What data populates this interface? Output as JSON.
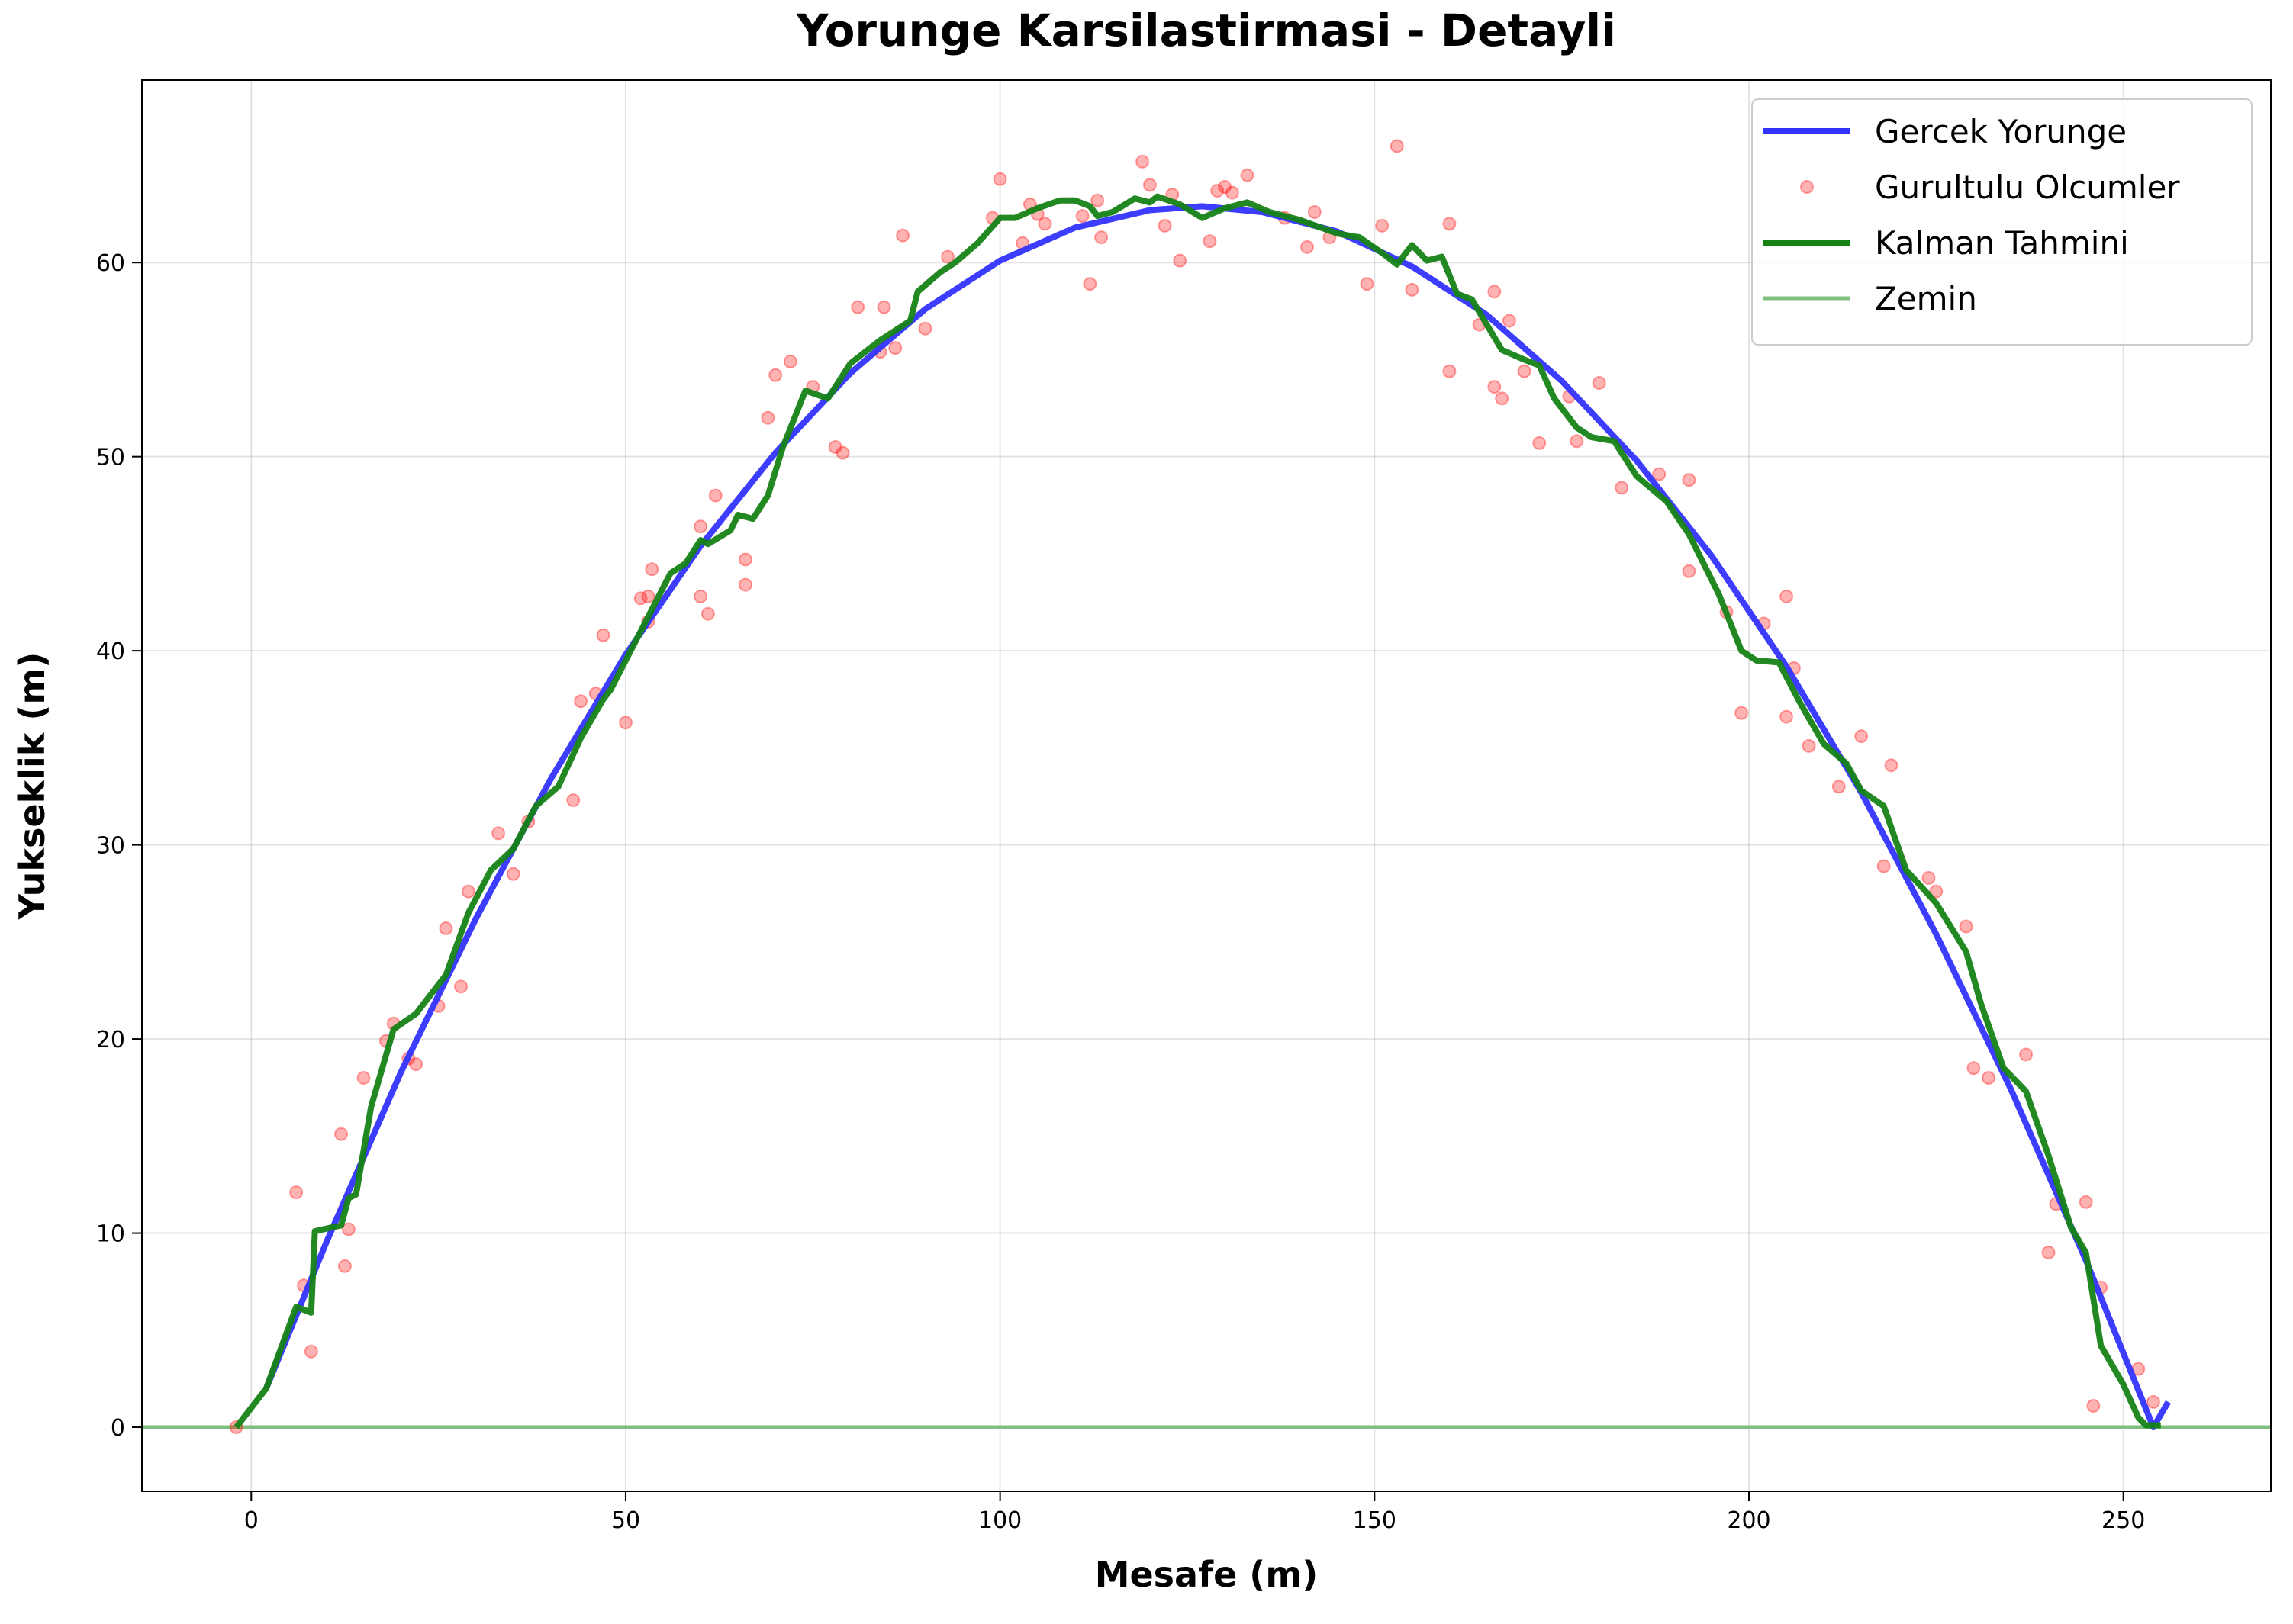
{
  "chart_data": {
    "type": "line",
    "title": "Yorunge Karsilastirmasi - Detayli",
    "x_label": "Mesafe (m)",
    "y_label": "Yukseklik (m)",
    "xlim": [
      -14.6,
      269.7
    ],
    "ylim": [
      -3.3,
      69.4
    ],
    "xticks": [
      0,
      50,
      100,
      150,
      200,
      250
    ],
    "yticks": [
      0,
      10,
      20,
      30,
      40,
      50,
      60
    ],
    "grid": true,
    "legend": "upper right",
    "series": [
      {
        "name": "Gercek Yorunge",
        "kind": "line",
        "color": "#3333ff",
        "x": [
          2,
          10,
          20,
          30,
          40,
          50,
          60,
          70,
          80,
          90,
          100,
          110,
          120,
          127,
          135,
          145,
          155,
          165,
          175,
          185,
          195,
          205,
          215,
          225,
          235,
          245,
          254,
          256
        ],
        "values": [
          2.0,
          9.5,
          18.3,
          26.2,
          33.4,
          39.8,
          45.4,
          50.2,
          54.3,
          57.6,
          60.1,
          61.8,
          62.7,
          62.9,
          62.6,
          61.6,
          59.8,
          57.3,
          53.9,
          49.8,
          44.9,
          39.2,
          32.7,
          25.4,
          17.4,
          8.6,
          0,
          1.3
        ]
      },
      {
        "name": "Gurultulu Olcumler",
        "kind": "scatter",
        "color": "#ff0000",
        "x": [
          -2,
          6,
          7,
          8,
          12,
          12.5,
          13,
          15,
          18,
          19,
          21,
          22,
          25,
          26,
          28,
          29,
          33,
          35,
          37,
          43,
          44,
          46,
          47,
          50,
          52,
          53,
          53.5,
          53,
          60,
          60,
          61,
          62,
          66,
          66,
          69,
          70,
          72,
          75,
          78,
          79,
          81,
          84,
          84.5,
          86,
          87,
          90,
          93,
          99,
          100,
          103,
          104,
          105,
          106,
          111,
          112,
          113,
          113.5,
          119,
          120,
          122,
          123,
          124,
          128,
          129,
          130,
          131,
          133,
          138,
          141,
          142,
          144,
          149,
          151,
          153,
          155,
          160,
          160,
          164,
          166,
          166,
          167,
          168,
          170,
          172,
          176,
          177,
          180,
          183,
          188,
          192,
          192,
          197,
          199,
          202,
          205,
          205,
          206,
          208,
          212,
          215,
          218,
          219,
          224,
          225,
          229,
          230,
          232,
          237,
          240,
          241,
          245,
          246,
          247,
          252,
          254
        ],
        "values": [
          0,
          12.1,
          7.3,
          3.9,
          15.1,
          8.3,
          10.2,
          18,
          19.9,
          20.8,
          19,
          18.7,
          21.7,
          25.7,
          22.7,
          27.6,
          30.6,
          28.5,
          31.2,
          32.3,
          37.4,
          37.8,
          40.8,
          36.3,
          42.7,
          42.8,
          44.2,
          41.5,
          42.8,
          46.4,
          41.9,
          48,
          44.7,
          43.4,
          52,
          54.2,
          54.9,
          53.6,
          50.5,
          50.2,
          57.7,
          55.4,
          57.7,
          55.6,
          61.4,
          56.6,
          60.3,
          62.3,
          64.3,
          61,
          63,
          62.5,
          62,
          62.4,
          58.9,
          63.2,
          61.3,
          65.2,
          64,
          61.9,
          63.5,
          60.1,
          61.1,
          63.7,
          63.9,
          63.6,
          64.5,
          62.3,
          60.8,
          62.6,
          61.3,
          58.9,
          61.9,
          66,
          58.6,
          54.4,
          62,
          56.8,
          53.6,
          58.5,
          53,
          57,
          54.4,
          50.7,
          53.1,
          50.8,
          53.8,
          48.4,
          49.1,
          48.8,
          44.1,
          42,
          36.8,
          41.4,
          42.8,
          36.6,
          39.1,
          35.1,
          33,
          35.6,
          28.9,
          34.1,
          28.3,
          27.6,
          25.8,
          18.5,
          18,
          19.2,
          9,
          11.5,
          11.6,
          1.1,
          7.2,
          3,
          1.3
        ]
      },
      {
        "name": "Kalman Tahmini",
        "kind": "line",
        "color": "#168216",
        "x": [
          -2,
          2,
          6,
          8,
          8.5,
          12,
          13,
          14,
          16,
          19,
          22,
          26,
          29,
          32,
          35,
          38,
          41,
          44,
          47,
          48,
          52,
          56,
          58,
          60,
          61,
          64,
          65,
          67,
          69,
          71,
          74,
          77,
          80,
          84,
          88,
          89,
          92,
          94,
          97,
          100,
          102,
          105,
          108,
          110,
          112,
          113,
          115,
          118,
          120,
          121,
          124,
          127,
          130,
          133,
          136,
          140,
          145,
          148,
          151,
          153,
          155,
          157,
          159,
          161,
          163,
          167,
          170,
          172,
          174,
          177,
          179,
          182,
          185,
          189,
          192,
          196,
          199,
          201,
          204,
          207,
          210,
          213,
          215,
          218,
          221,
          225,
          229,
          231,
          234,
          237,
          240,
          243,
          245,
          247,
          250,
          252,
          253,
          255
        ],
        "values": [
          0,
          2,
          6.2,
          5.9,
          10.1,
          10.4,
          11.8,
          12,
          16.5,
          20.5,
          21.3,
          23.3,
          26.5,
          28.7,
          29.8,
          32,
          33,
          35.5,
          37.5,
          38,
          41,
          44,
          44.5,
          45.7,
          45.5,
          46.2,
          47,
          46.8,
          48,
          50.5,
          53.4,
          53,
          54.8,
          56,
          57,
          58.5,
          59.5,
          60,
          61,
          62.3,
          62.3,
          62.8,
          63.2,
          63.2,
          62.9,
          62.4,
          62.6,
          63.3,
          63.1,
          63.4,
          63,
          62.3,
          62.8,
          63.1,
          62.6,
          62.2,
          61.5,
          61.3,
          60.5,
          59.9,
          60.9,
          60.1,
          60.3,
          58.4,
          58.1,
          55.5,
          55,
          54.7,
          53,
          51.5,
          51,
          50.8,
          49,
          47.7,
          46,
          42.9,
          40,
          39.5,
          39.4,
          37.2,
          35.2,
          34.2,
          32.8,
          32,
          28.7,
          27,
          24.5,
          21.8,
          18.5,
          17.3,
          14,
          10.3,
          9,
          4.2,
          2.2,
          0.5,
          0.1,
          0.1
        ]
      },
      {
        "name": "Zemin",
        "kind": "hline",
        "color": "#7fbf7f",
        "value": 0
      }
    ]
  }
}
